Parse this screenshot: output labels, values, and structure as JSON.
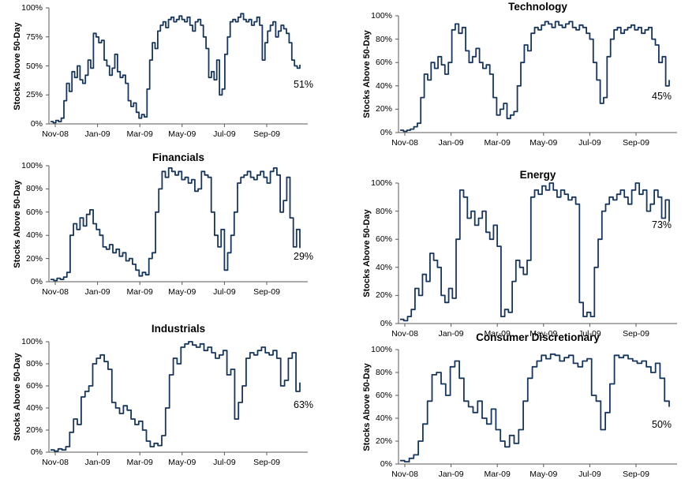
{
  "page": {
    "background": "#ffffff",
    "line_color": "#17365d",
    "axis_color": "#595959"
  },
  "chart_data": [
    {
      "type": "line",
      "title": "",
      "ylabel": "Stocks Above 50-Day",
      "end_label": "51%",
      "x_ticks": [
        "Nov-08",
        "Jan-09",
        "Mar-09",
        "May-09",
        "Jul-09",
        "Sep-09"
      ],
      "y_ticks": [
        "0%",
        "25%",
        "50%",
        "75%",
        "100%"
      ],
      "ylim": [
        0,
        100
      ],
      "legend": "none",
      "values": [
        2,
        1,
        3,
        2,
        5,
        20,
        35,
        28,
        45,
        40,
        50,
        38,
        35,
        42,
        55,
        48,
        78,
        75,
        70,
        72,
        55,
        50,
        42,
        48,
        60,
        45,
        40,
        42,
        35,
        20,
        15,
        18,
        10,
        5,
        8,
        6,
        30,
        55,
        70,
        65,
        80,
        85,
        88,
        83,
        90,
        92,
        88,
        90,
        93,
        90,
        88,
        92,
        85,
        80,
        88,
        90,
        85,
        75,
        65,
        40,
        45,
        38,
        55,
        25,
        30,
        60,
        75,
        88,
        90,
        88,
        92,
        95,
        90,
        88,
        90,
        85,
        88,
        92,
        85,
        55,
        70,
        80,
        85,
        88,
        75,
        80,
        85,
        82,
        78,
        70,
        55,
        50,
        48,
        51
      ]
    },
    {
      "type": "line",
      "title": "Technology",
      "ylabel": "Stocks Above 50-Day",
      "end_label": "45%",
      "x_ticks": [
        "Nov-08",
        "Jan-09",
        "Mar-09",
        "May-09",
        "Jul-09",
        "Sep-09"
      ],
      "y_ticks": [
        "0%",
        "20%",
        "40%",
        "60%",
        "80%",
        "100%"
      ],
      "ylim": [
        0,
        100
      ],
      "legend": "none",
      "values": [
        2,
        1,
        2,
        3,
        5,
        8,
        30,
        50,
        45,
        60,
        55,
        65,
        58,
        50,
        60,
        88,
        93,
        85,
        90,
        70,
        60,
        65,
        72,
        60,
        55,
        58,
        50,
        30,
        15,
        20,
        25,
        12,
        15,
        18,
        40,
        60,
        75,
        70,
        85,
        90,
        88,
        92,
        95,
        93,
        90,
        95,
        92,
        90,
        93,
        95,
        90,
        88,
        92,
        90,
        85,
        80,
        60,
        45,
        25,
        30,
        65,
        80,
        88,
        90,
        85,
        88,
        90,
        92,
        88,
        90,
        85,
        88,
        90,
        80,
        75,
        60,
        65,
        40,
        45
      ]
    },
    {
      "type": "line",
      "title": "Financials",
      "ylabel": "Stocks Above 50-Day",
      "end_label": "29%",
      "x_ticks": [
        "Nov-08",
        "Jan-09",
        "Mar-09",
        "May-09",
        "Jul-09",
        "Sep-09"
      ],
      "y_ticks": [
        "0%",
        "20%",
        "40%",
        "60%",
        "80%",
        "100%"
      ],
      "ylim": [
        0,
        100
      ],
      "legend": "none",
      "values": [
        2,
        1,
        3,
        2,
        4,
        8,
        40,
        50,
        45,
        55,
        48,
        58,
        62,
        50,
        45,
        40,
        30,
        28,
        32,
        25,
        28,
        22,
        25,
        18,
        20,
        15,
        10,
        5,
        8,
        6,
        20,
        25,
        60,
        80,
        95,
        90,
        98,
        95,
        92,
        95,
        88,
        90,
        85,
        88,
        78,
        80,
        95,
        92,
        90,
        60,
        40,
        30,
        45,
        10,
        25,
        40,
        60,
        85,
        90,
        92,
        95,
        90,
        88,
        92,
        95,
        90,
        85,
        95,
        98,
        92,
        60,
        70,
        90,
        55,
        30,
        45,
        29
      ]
    },
    {
      "type": "line",
      "title": "Energy",
      "ylabel": "Stocks Above 50-Day",
      "end_label": "73%",
      "x_ticks": [
        "Nov-08",
        "Jan-09",
        "Mar-09",
        "May-09",
        "Jul-09",
        "Sep-09"
      ],
      "y_ticks": [
        "0%",
        "20%",
        "40%",
        "60%",
        "80%",
        "100%"
      ],
      "ylim": [
        0,
        100
      ],
      "legend": "none",
      "values": [
        3,
        2,
        5,
        10,
        25,
        20,
        35,
        30,
        50,
        45,
        40,
        20,
        15,
        25,
        18,
        60,
        95,
        90,
        75,
        80,
        70,
        75,
        80,
        65,
        60,
        70,
        55,
        5,
        10,
        8,
        30,
        45,
        40,
        35,
        45,
        90,
        95,
        92,
        98,
        95,
        100,
        95,
        90,
        95,
        92,
        88,
        90,
        85,
        15,
        5,
        8,
        5,
        40,
        60,
        80,
        85,
        90,
        88,
        92,
        95,
        90,
        85,
        95,
        100,
        92,
        95,
        80,
        85,
        95,
        90,
        75,
        88,
        73
      ]
    },
    {
      "type": "line",
      "title": "Industrials",
      "ylabel": "Stocks Above 50-Day",
      "end_label": "63%",
      "x_ticks": [
        "Nov-08",
        "Jan-09",
        "Mar-09",
        "May-09",
        "Jul-09",
        "Sep-09"
      ],
      "y_ticks": [
        "0%",
        "20%",
        "40%",
        "60%",
        "80%",
        "100%"
      ],
      "ylim": [
        0,
        100
      ],
      "legend": "none",
      "values": [
        2,
        1,
        3,
        2,
        5,
        18,
        30,
        25,
        50,
        55,
        60,
        80,
        85,
        88,
        82,
        75,
        45,
        40,
        35,
        42,
        38,
        30,
        25,
        28,
        20,
        10,
        5,
        8,
        6,
        15,
        40,
        70,
        85,
        80,
        95,
        98,
        100,
        97,
        95,
        98,
        92,
        95,
        90,
        85,
        88,
        92,
        70,
        75,
        30,
        45,
        60,
        85,
        90,
        88,
        92,
        95,
        90,
        88,
        92,
        85,
        60,
        65,
        85,
        90,
        55,
        63
      ]
    },
    {
      "type": "line",
      "title": "Consumer Discretionary",
      "ylabel": "Stocks Above 50-Day",
      "end_label": "50%",
      "x_ticks": [
        "Nov-08",
        "Jan-09",
        "Mar-09",
        "May-09",
        "Jul-09",
        "Sep-09"
      ],
      "y_ticks": [
        "0%",
        "20%",
        "40%",
        "60%",
        "80%",
        "100%"
      ],
      "ylim": [
        0,
        100
      ],
      "legend": "none",
      "values": [
        3,
        2,
        5,
        8,
        20,
        35,
        55,
        78,
        80,
        70,
        60,
        85,
        90,
        75,
        55,
        50,
        45,
        55,
        40,
        35,
        48,
        30,
        20,
        15,
        25,
        18,
        30,
        55,
        75,
        85,
        90,
        95,
        92,
        96,
        95,
        90,
        93,
        95,
        88,
        85,
        90,
        92,
        60,
        55,
        30,
        45,
        70,
        95,
        93,
        95,
        92,
        90,
        88,
        90,
        85,
        80,
        88,
        75,
        55,
        50
      ]
    }
  ]
}
